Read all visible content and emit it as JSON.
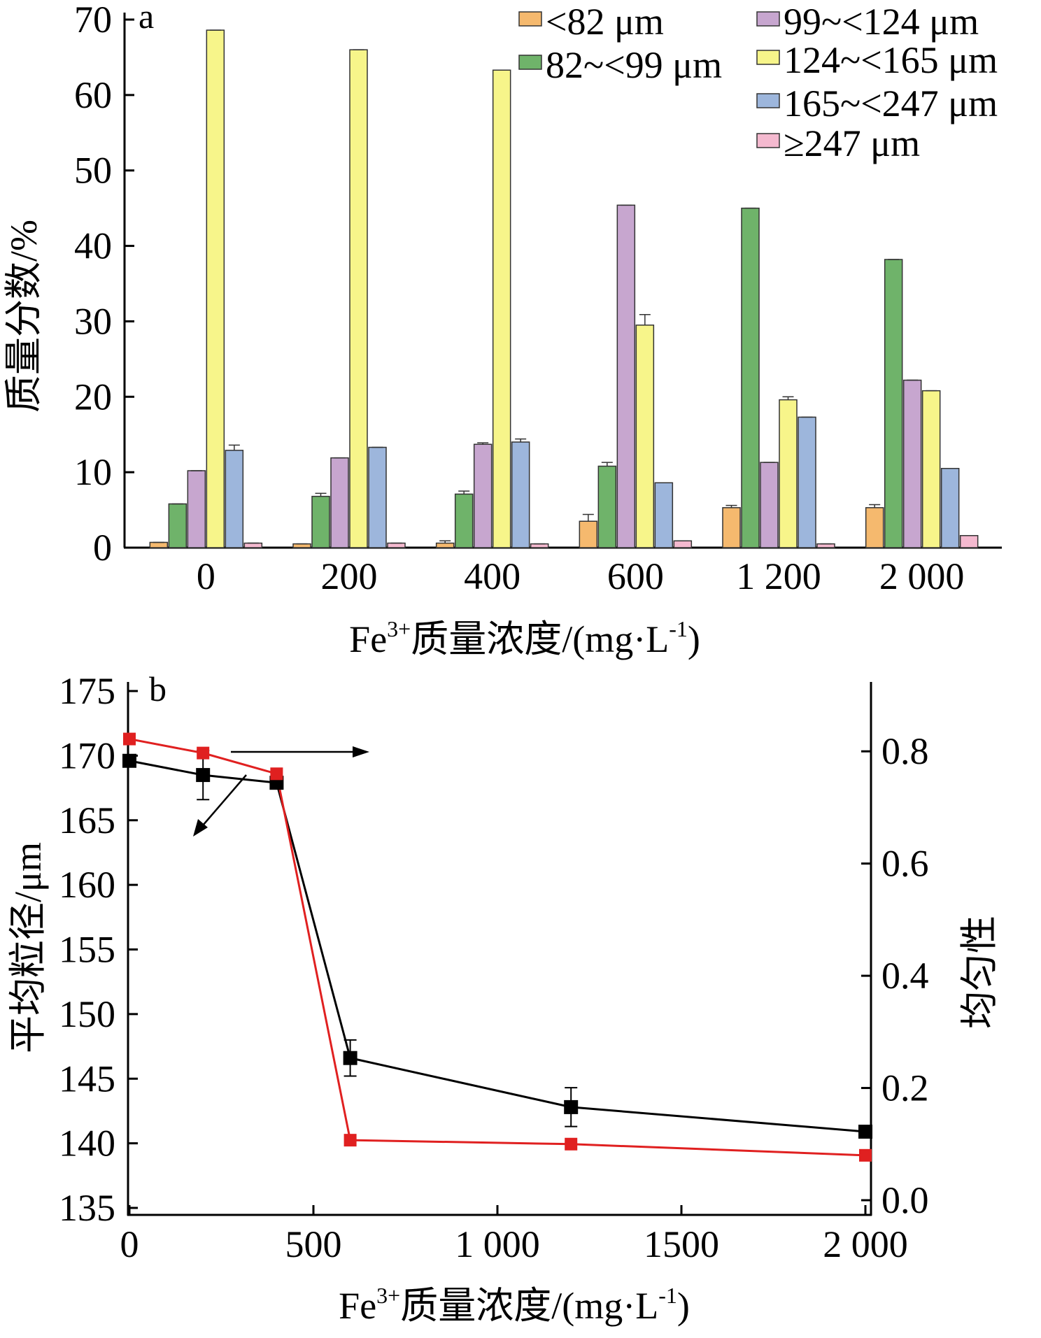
{
  "chart_data": [
    {
      "panel_label": "a",
      "type": "bar",
      "xlabel_main": "Fe",
      "xlabel_sup": "3+",
      "xlabel_rest": "质量浓度/(mg·L",
      "xlabel_sup2": "-1",
      "xlabel_end": ")",
      "ylabel": "质量分数/%",
      "ylim": [
        0,
        70
      ],
      "yticks": [
        "0",
        "10",
        "20",
        "30",
        "40",
        "50",
        "60",
        "70"
      ],
      "categories": [
        "0",
        "200",
        "400",
        "600",
        "1 200",
        "2 000"
      ],
      "legend_position": "top-right",
      "series": [
        {
          "name": "<82 μm",
          "color": "#f5b96e",
          "values": [
            0.7,
            0.5,
            0.6,
            3.5,
            5.3,
            5.3
          ],
          "errors": [
            0,
            0,
            0.3,
            0.9,
            0.3,
            0.4
          ]
        },
        {
          "name": "82~<99 μm",
          "color": "#6fb36a",
          "values": [
            5.8,
            6.8,
            7.1,
            10.8,
            45.0,
            38.2
          ],
          "errors": [
            0,
            0.4,
            0.4,
            0.5,
            0,
            0
          ]
        },
        {
          "name": "99~<124 μm",
          "color": "#c7a6cf",
          "values": [
            10.2,
            11.9,
            13.7,
            45.4,
            11.3,
            22.2
          ],
          "errors": [
            0,
            0,
            0.2,
            0,
            0,
            0
          ]
        },
        {
          "name": "124~<165 μm",
          "color": "#f7f58a",
          "values": [
            68.6,
            66.0,
            63.3,
            29.5,
            19.6,
            20.8
          ],
          "errors": [
            0,
            0,
            0,
            1.4,
            0.4,
            0
          ]
        },
        {
          "name": "165~<247 μm",
          "color": "#9db6dc",
          "values": [
            12.9,
            13.3,
            14.0,
            8.6,
            17.3,
            10.5
          ],
          "errors": [
            0.7,
            0,
            0.4,
            0,
            0,
            0
          ]
        },
        {
          "name": "≥247 μm",
          "color": "#f4b9cf",
          "values": [
            0.6,
            0.6,
            0.5,
            0.9,
            0.5,
            1.6
          ],
          "errors": [
            0,
            0,
            0,
            0,
            0,
            0
          ]
        }
      ]
    },
    {
      "panel_label": "b",
      "type": "line",
      "xlabel_main": "Fe",
      "xlabel_sup": "3+",
      "xlabel_rest": "质量浓度/(mg·L",
      "xlabel_sup2": "-1",
      "xlabel_end": ")",
      "ylabel_left": "平均粒径/μm",
      "ylabel_right": "均匀性",
      "xlim": [
        0,
        2000
      ],
      "xticks": [
        {
          "value": 0,
          "label": "0"
        },
        {
          "value": 500,
          "label": "500"
        },
        {
          "value": 1000,
          "label": "1 000"
        },
        {
          "value": 1500,
          "label": "1500"
        },
        {
          "value": 2000,
          "label": "2 000"
        }
      ],
      "ylim_left": [
        135,
        175
      ],
      "yticks_left": [
        {
          "value": 135,
          "label": "135"
        },
        {
          "value": 140,
          "label": "140"
        },
        {
          "value": 145,
          "label": "145"
        },
        {
          "value": 150,
          "label": "150"
        },
        {
          "value": 155,
          "label": "155"
        },
        {
          "value": 160,
          "label": "160"
        },
        {
          "value": 165,
          "label": "165"
        },
        {
          "value": 170,
          "label": "170"
        },
        {
          "value": 175,
          "label": "175"
        }
      ],
      "ylim_right": [
        0.0,
        0.9
      ],
      "yticks_right": [
        {
          "value": 0.0,
          "label": "0.0"
        },
        {
          "value": 0.2,
          "label": "0.2"
        },
        {
          "value": 0.4,
          "label": "0.4"
        },
        {
          "value": 0.6,
          "label": "0.6"
        },
        {
          "value": 0.8,
          "label": "0.8"
        }
      ],
      "series": [
        {
          "axis": "left",
          "color": "#000000",
          "x": [
            0,
            200,
            400,
            600,
            1200,
            2000
          ],
          "y": [
            169.6,
            168.5,
            167.9,
            146.6,
            142.8,
            140.9
          ],
          "errors": [
            0,
            1.9,
            0,
            1.4,
            1.5,
            0
          ]
        },
        {
          "axis": "right",
          "color": "#e02020",
          "x": [
            0,
            200,
            400,
            600,
            1200,
            2000
          ],
          "y": [
            0.822,
            0.797,
            0.76,
            0.107,
            0.1,
            0.08
          ]
        }
      ]
    }
  ]
}
